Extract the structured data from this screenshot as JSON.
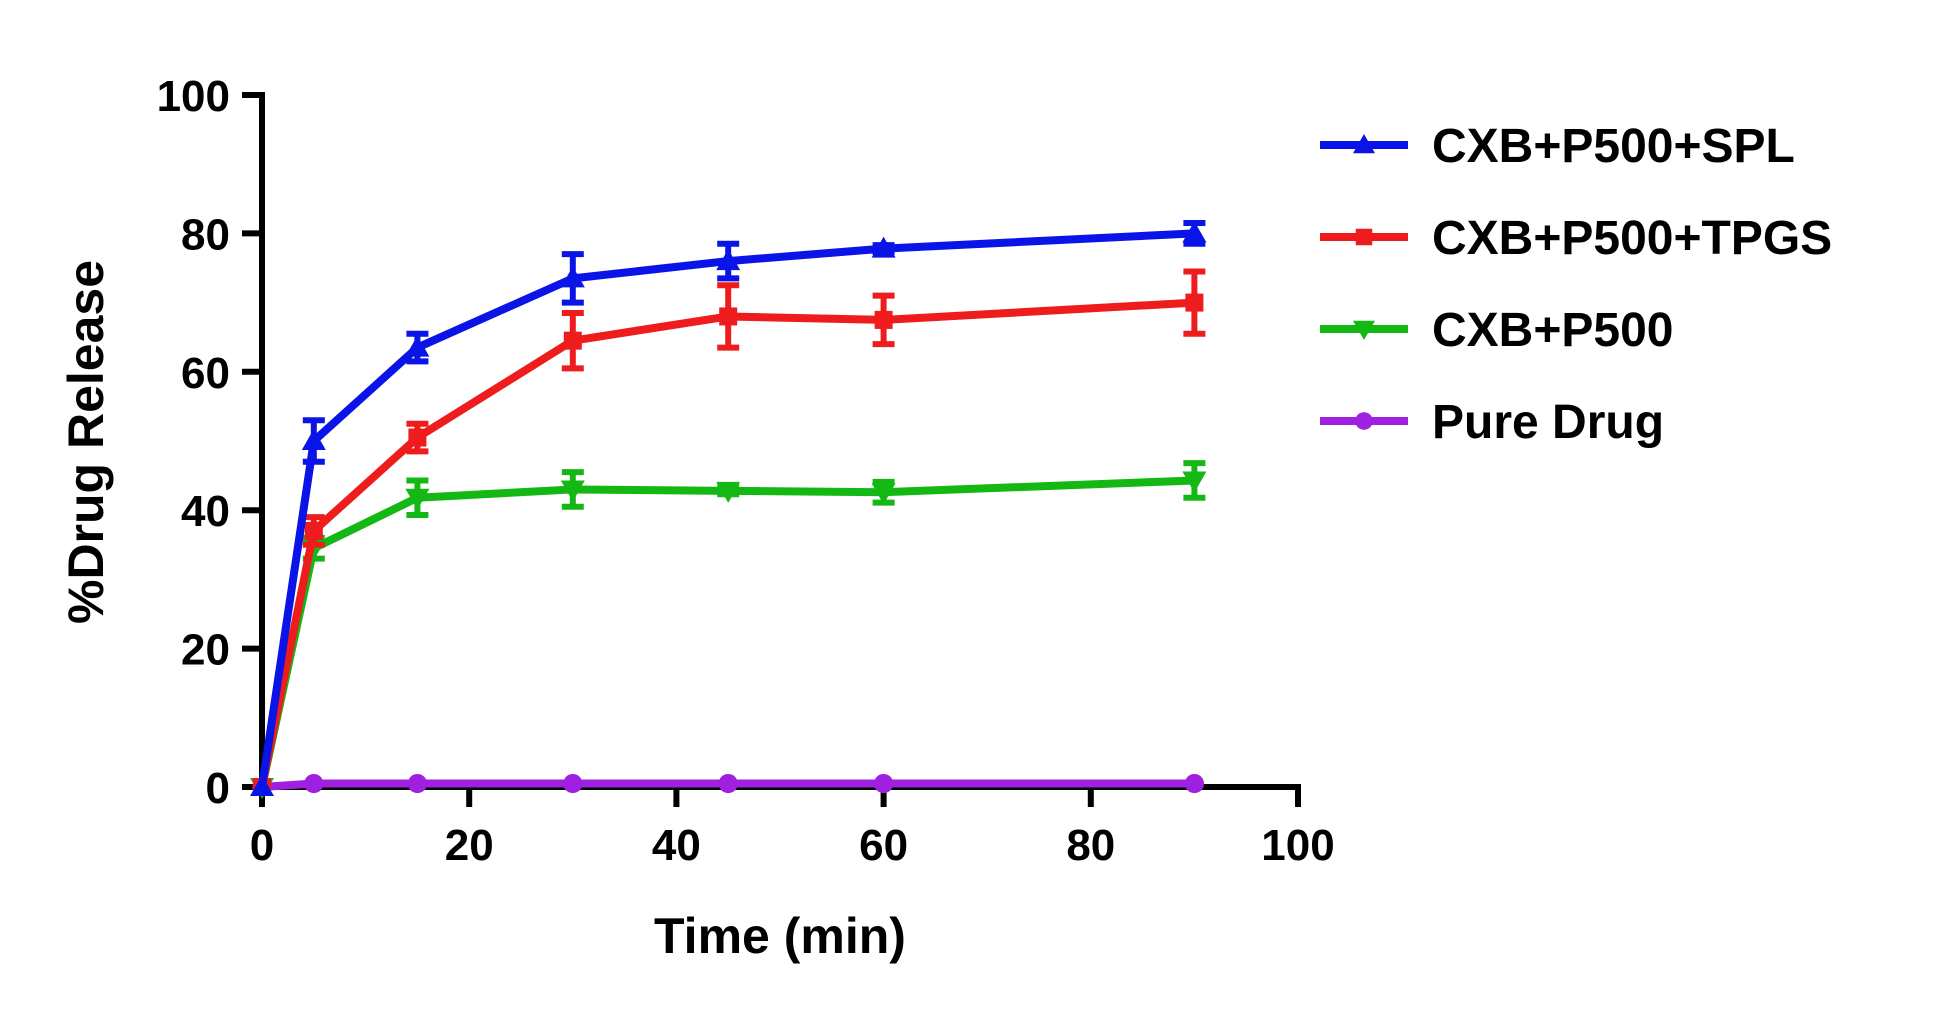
{
  "chart_data": {
    "type": "line",
    "title": "",
    "xlabel": "Time (min)",
    "ylabel": "%Drug Release",
    "xlim": [
      0,
      100
    ],
    "ylim": [
      0,
      100
    ],
    "xticks": [
      "0",
      "20",
      "40",
      "60",
      "80",
      "100"
    ],
    "yticks": [
      "0",
      "20",
      "40",
      "60",
      "80",
      "100"
    ],
    "grid": false,
    "legend_position": "right",
    "x": [
      0,
      5,
      15,
      30,
      45,
      60,
      90
    ],
    "series": [
      {
        "name": "CXB+P500+SPL",
        "color": "#0a14e6",
        "marker": "triangle-up",
        "values": [
          0,
          50,
          63.5,
          73.5,
          76,
          77.8,
          80
        ],
        "errors": [
          0,
          3,
          2,
          3.5,
          2.5,
          0.5,
          1.5
        ]
      },
      {
        "name": "CXB+P500+TPGS",
        "color": "#ee1c1c",
        "marker": "square",
        "values": [
          0,
          37,
          50.5,
          64.5,
          68,
          67.5,
          70
        ],
        "errors": [
          0,
          2,
          2,
          4,
          4.5,
          3.5,
          4.5
        ]
      },
      {
        "name": "CXB+P500",
        "color": "#14b814",
        "marker": "triangle-down",
        "values": [
          0,
          34.5,
          41.8,
          43,
          42.8,
          42.6,
          44.3
        ],
        "errors": [
          0,
          1.5,
          2.5,
          2.5,
          0.5,
          1.5,
          2.5
        ]
      },
      {
        "name": "Pure Drug",
        "color": "#a020e0",
        "marker": "circle",
        "values": [
          0,
          0.5,
          0.5,
          0.5,
          0.5,
          0.5,
          0.5
        ],
        "errors": [
          0,
          0,
          0,
          0,
          0,
          0,
          0
        ]
      }
    ]
  }
}
